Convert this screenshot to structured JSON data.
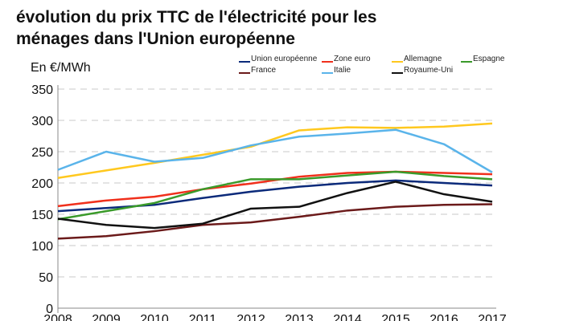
{
  "chart_data": {
    "type": "line",
    "title": "évolution du prix TTC de l'électricité pour les ménages dans l'Union européenne",
    "ylabel": "En €/MWh",
    "x": [
      2008,
      2009,
      2010,
      2011,
      2012,
      2013,
      2014,
      2015,
      2016,
      2017
    ],
    "ylim": [
      0,
      350
    ],
    "yticks": [
      0,
      50,
      100,
      150,
      200,
      250,
      300,
      350
    ],
    "grid": true,
    "legend_placement": "top-right",
    "series": [
      {
        "name": "Union européenne",
        "color": "#0b2a7a",
        "values": [
          155,
          160,
          165,
          176,
          186,
          194,
          200,
          204,
          200,
          196
        ]
      },
      {
        "name": "Zone euro",
        "color": "#f0301c",
        "values": [
          163,
          172,
          178,
          190,
          199,
          210,
          216,
          218,
          216,
          214
        ]
      },
      {
        "name": "Allemagne",
        "color": "#ffc81e",
        "values": [
          208,
          220,
          232,
          245,
          258,
          284,
          289,
          288,
          290,
          295
        ]
      },
      {
        "name": "Espagne",
        "color": "#3a9a2a",
        "values": [
          142,
          155,
          168,
          190,
          206,
          206,
          212,
          218,
          211,
          206
        ]
      },
      {
        "name": "France",
        "color": "#6b1a1a",
        "values": [
          111,
          115,
          123,
          133,
          137,
          146,
          156,
          162,
          165,
          166
        ]
      },
      {
        "name": "Italie",
        "color": "#5ab4ea",
        "values": [
          221,
          250,
          234,
          240,
          260,
          274,
          279,
          285,
          262,
          217
        ]
      },
      {
        "name": "Royaume-Uni",
        "color": "#111111",
        "values": [
          143,
          133,
          128,
          135,
          159,
          162,
          184,
          202,
          182,
          170
        ]
      }
    ]
  }
}
